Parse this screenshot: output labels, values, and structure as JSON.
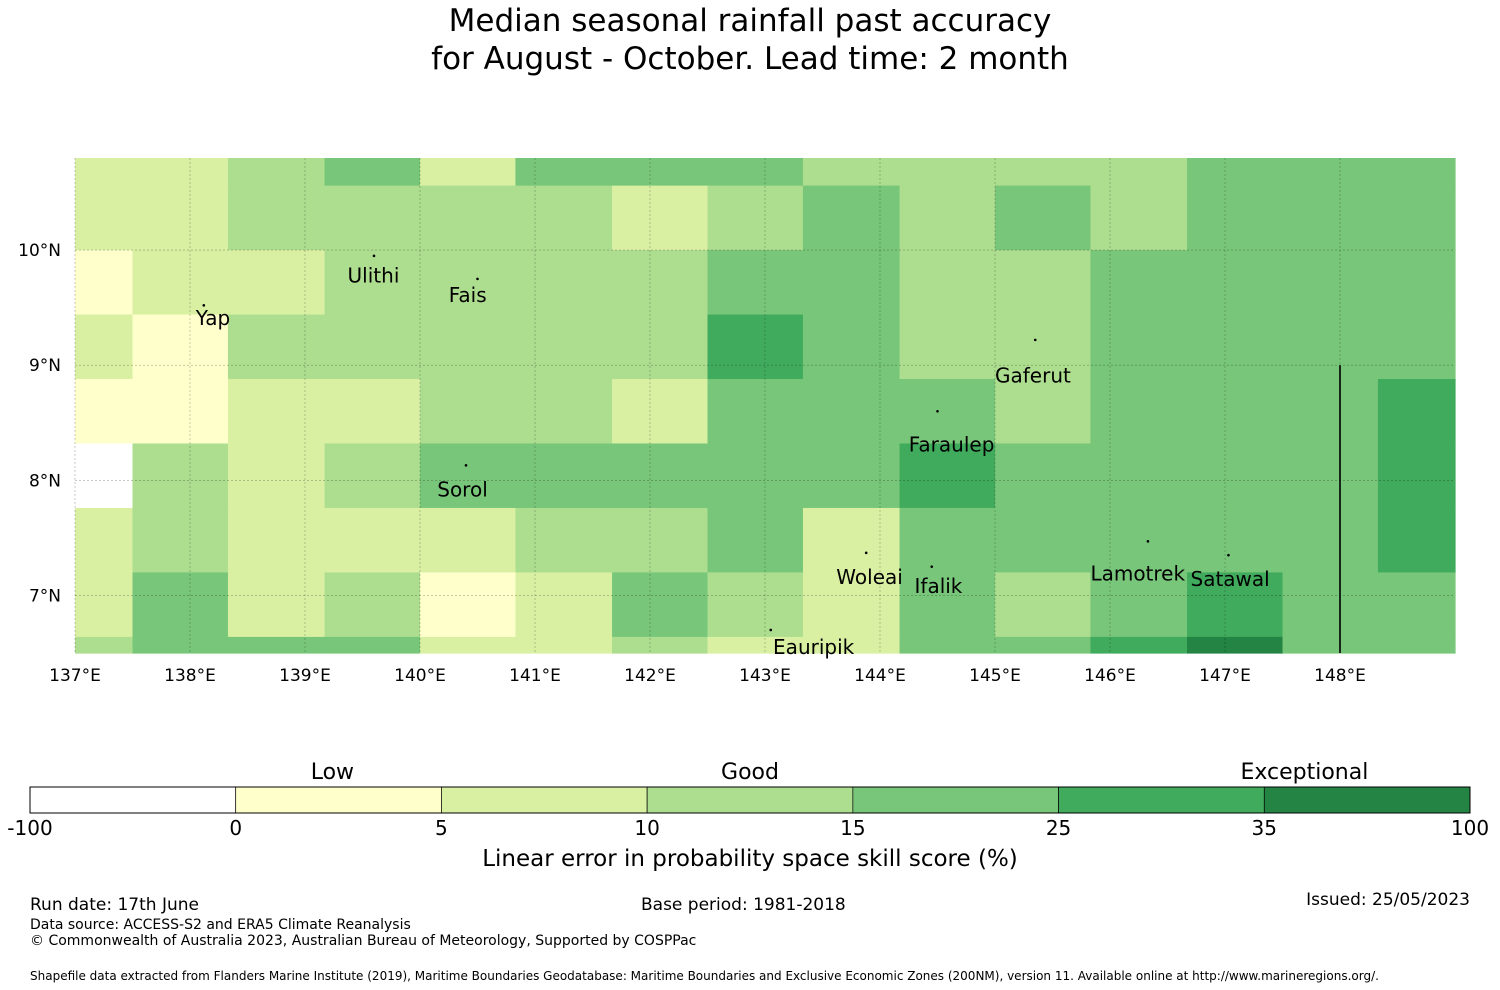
{
  "title": {
    "line1": "Median seasonal rainfall past accuracy",
    "line2": "for August - October. Lead time: 2 month"
  },
  "map": {
    "lon_range": [
      137,
      149
    ],
    "lat_range": [
      6.5,
      10.8
    ],
    "lon_ticks": [
      {
        "value": 137,
        "label": "137°E"
      },
      {
        "value": 138,
        "label": "138°E"
      },
      {
        "value": 139,
        "label": "139°E"
      },
      {
        "value": 140,
        "label": "140°E"
      },
      {
        "value": 141,
        "label": "141°E"
      },
      {
        "value": 142,
        "label": "142°E"
      },
      {
        "value": 143,
        "label": "143°E"
      },
      {
        "value": 144,
        "label": "144°E"
      },
      {
        "value": 145,
        "label": "145°E"
      },
      {
        "value": 146,
        "label": "146°E"
      },
      {
        "value": 147,
        "label": "147°E"
      },
      {
        "value": 148,
        "label": "148°E"
      }
    ],
    "lat_ticks": [
      {
        "value": 10,
        "label": "10°N"
      },
      {
        "value": 9,
        "label": "9°N"
      },
      {
        "value": 8,
        "label": "8°N"
      },
      {
        "value": 7,
        "label": "7°N"
      }
    ],
    "grid_lon_edges": [
      137,
      137.5,
      138.33,
      139.17,
      140,
      140.83,
      141.67,
      142.5,
      143.33,
      144.17,
      145,
      145.83,
      146.67,
      147.5,
      148.33,
      149
    ],
    "grid_lat_edges": [
      10.8,
      10.56,
      10,
      9.44,
      8.88,
      8.32,
      7.76,
      7.2,
      6.64,
      6.5
    ],
    "category_grid": [
      [
        2,
        2,
        3,
        4,
        2,
        4,
        4,
        4,
        3,
        3,
        3,
        3,
        4,
        4,
        4
      ],
      [
        2,
        2,
        3,
        3,
        3,
        3,
        2,
        3,
        4,
        3,
        4,
        3,
        4,
        4,
        4
      ],
      [
        1,
        2,
        2,
        3,
        3,
        3,
        3,
        4,
        4,
        3,
        3,
        4,
        4,
        4,
        4
      ],
      [
        2,
        1,
        3,
        3,
        3,
        3,
        3,
        5,
        4,
        3,
        3,
        4,
        4,
        4,
        4
      ],
      [
        1,
        1,
        2,
        2,
        3,
        3,
        2,
        4,
        4,
        4,
        3,
        4,
        4,
        4,
        5
      ],
      [
        0,
        3,
        2,
        3,
        4,
        4,
        4,
        4,
        4,
        5,
        4,
        4,
        4,
        4,
        5
      ],
      [
        2,
        3,
        2,
        2,
        2,
        3,
        3,
        4,
        2,
        4,
        4,
        4,
        4,
        4,
        5
      ],
      [
        2,
        4,
        2,
        3,
        1,
        2,
        4,
        3,
        2,
        4,
        3,
        4,
        5,
        4,
        4
      ],
      [
        3,
        4,
        4,
        4,
        2,
        2,
        3,
        2,
        2,
        4,
        4,
        5,
        6,
        4,
        4
      ]
    ],
    "boundary_line": {
      "lon": 148,
      "lat_from": 6.5,
      "lat_to": 9.0
    },
    "islands": [
      {
        "name": "Ulithi",
        "lon": 139.6,
        "lat": 9.95,
        "label_lon": 139.37,
        "label_lat": 9.72
      },
      {
        "name": "Fais",
        "lon": 140.5,
        "lat": 9.75,
        "label_lon": 140.25,
        "label_lat": 9.55
      },
      {
        "name": "Yap",
        "lon": 138.12,
        "lat": 9.52,
        "label_lon": 138.05,
        "label_lat": 9.35
      },
      {
        "name": "Gaferut",
        "lon": 145.35,
        "lat": 9.22,
        "label_lon": 145.0,
        "label_lat": 8.85
      },
      {
        "name": "Faraulep",
        "lon": 144.5,
        "lat": 8.6,
        "label_lon": 144.25,
        "label_lat": 8.25
      },
      {
        "name": "Sorol",
        "lon": 140.4,
        "lat": 8.13,
        "label_lon": 140.15,
        "label_lat": 7.86
      },
      {
        "name": "Woleai",
        "lon": 143.88,
        "lat": 7.37,
        "label_lon": 143.62,
        "label_lat": 7.1
      },
      {
        "name": "Ifalik",
        "lon": 144.45,
        "lat": 7.25,
        "label_lon": 144.3,
        "label_lat": 7.02
      },
      {
        "name": "Lamotrek",
        "lon": 146.33,
        "lat": 7.47,
        "label_lon": 145.83,
        "label_lat": 7.13
      },
      {
        "name": "Satawal",
        "lon": 147.03,
        "lat": 7.35,
        "label_lon": 146.7,
        "label_lat": 7.08
      },
      {
        "name": "Eauripik",
        "lon": 143.05,
        "lat": 6.7,
        "label_lon": 143.07,
        "label_lat": 6.49
      }
    ]
  },
  "colorbar": {
    "categories": [
      {
        "label": "Low",
        "position": 0.21
      },
      {
        "label": "Good",
        "position": 0.5
      },
      {
        "label": "Exceptional",
        "position": 0.885
      }
    ],
    "boundaries": [
      "-100",
      "0",
      "5",
      "10",
      "15",
      "25",
      "35",
      "100"
    ],
    "colors": [
      "#ffffff",
      "#ffffcc",
      "#d9f0a3",
      "#addd8e",
      "#78c679",
      "#41ab5d",
      "#238443"
    ],
    "title": "Linear error in probability space skill score (%)"
  },
  "footer": {
    "run_date": "Run date: 17th June",
    "base_period": "Base period: 1981-2018",
    "issued": "Issued: 25/05/2023",
    "data_source": "Data source: ACCESS-S2 and ERA5 Climate Reanalysis",
    "copyright": "© Commonwealth of Australia 2023, Australian Bureau of Meteorology, Supported by COSPPac",
    "shapefile": "Shapefile data extracted from Flanders Marine Institute (2019), Maritime Boundaries Geodatabase: Maritime Boundaries and Exclusive Economic Zones (200NM), version 11. Available online at http://www.marineregions.org/."
  }
}
